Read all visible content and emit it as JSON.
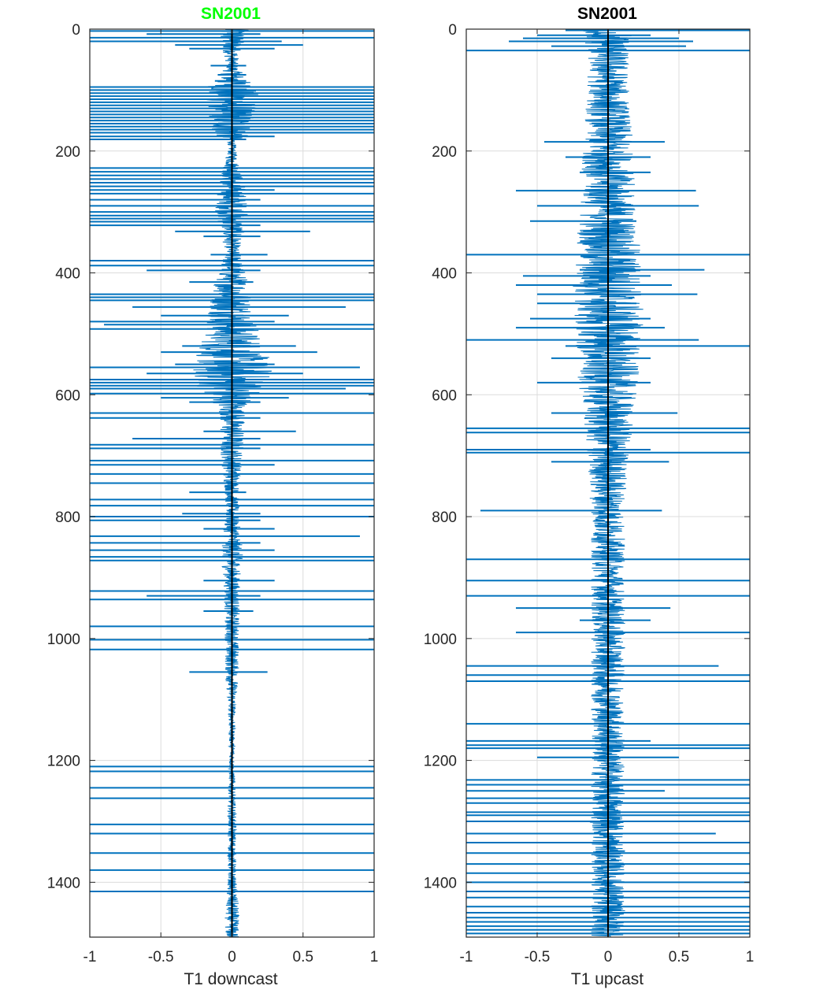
{
  "chart_data": [
    {
      "type": "line",
      "orientation": "vertical-profile",
      "title": "SN2001",
      "title_color": "#00ff00",
      "xlabel": "T1 downcast",
      "ylabel": "",
      "xlim": [
        -1,
        1
      ],
      "ylim": [
        0,
        1490
      ],
      "y_reversed": true,
      "x_ticks": [
        -1,
        -0.5,
        0,
        0.5,
        1
      ],
      "x_tick_labels": [
        "-1",
        "-0.5",
        "0",
        "0.5",
        "1"
      ],
      "y_ticks": [
        0,
        200,
        400,
        600,
        800,
        1000,
        1200,
        1400
      ],
      "y_tick_labels": [
        "0",
        "200",
        "400",
        "600",
        "800",
        "1000",
        "1200",
        "1400"
      ],
      "grid": true,
      "line_color": "#0072bd",
      "zero_line_color": "#000000",
      "envelope": [
        [
          0,
          0.12
        ],
        [
          40,
          0.06
        ],
        [
          60,
          0.04
        ],
        [
          80,
          0.1
        ],
        [
          100,
          0.2
        ],
        [
          170,
          0.15
        ],
        [
          185,
          0.03
        ],
        [
          200,
          0.03
        ],
        [
          260,
          0.1
        ],
        [
          300,
          0.12
        ],
        [
          340,
          0.08
        ],
        [
          360,
          0.05
        ],
        [
          400,
          0.1
        ],
        [
          440,
          0.15
        ],
        [
          500,
          0.2
        ],
        [
          530,
          0.25
        ],
        [
          560,
          0.3
        ],
        [
          600,
          0.22
        ],
        [
          620,
          0.1
        ],
        [
          700,
          0.08
        ],
        [
          760,
          0.05
        ],
        [
          800,
          0.05
        ],
        [
          860,
          0.08
        ],
        [
          900,
          0.06
        ],
        [
          1000,
          0.05
        ],
        [
          1060,
          0.05
        ],
        [
          1100,
          0.03
        ],
        [
          1160,
          0.02
        ],
        [
          1200,
          0.02
        ],
        [
          1300,
          0.03
        ],
        [
          1400,
          0.03
        ],
        [
          1440,
          0.05
        ],
        [
          1490,
          0.05
        ]
      ],
      "spikes": [
        {
          "y": 3,
          "xmin": -1,
          "xmax": 1
        },
        {
          "y": 8,
          "xmin": -0.6,
          "xmax": 0.2
        },
        {
          "y": 14,
          "xmin": -1,
          "xmax": 1
        },
        {
          "y": 20,
          "xmin": -1,
          "xmax": 0.35
        },
        {
          "y": 26,
          "xmin": -0.4,
          "xmax": 0.5
        },
        {
          "y": 32,
          "xmin": -0.3,
          "xmax": 0.3
        },
        {
          "y": 60,
          "xmin": -0.15,
          "xmax": 0.1
        },
        {
          "y": 75,
          "xmin": -0.1,
          "xmax": 0.1
        },
        {
          "y": 85,
          "xmin": -0.12,
          "xmax": 0.1
        },
        {
          "y": 95,
          "xmin": -1,
          "xmax": 1
        },
        {
          "y": 100,
          "xmin": -1,
          "xmax": 1
        },
        {
          "y": 105,
          "xmin": -1,
          "xmax": 1
        },
        {
          "y": 110,
          "xmin": -1,
          "xmax": 1
        },
        {
          "y": 115,
          "xmin": -1,
          "xmax": 1
        },
        {
          "y": 120,
          "xmin": -1,
          "xmax": 1
        },
        {
          "y": 125,
          "xmin": -1,
          "xmax": 1
        },
        {
          "y": 130,
          "xmin": -1,
          "xmax": 1
        },
        {
          "y": 135,
          "xmin": -1,
          "xmax": 1
        },
        {
          "y": 140,
          "xmin": -1,
          "xmax": 1
        },
        {
          "y": 145,
          "xmin": -1,
          "xmax": 1
        },
        {
          "y": 150,
          "xmin": -1,
          "xmax": 1
        },
        {
          "y": 155,
          "xmin": -1,
          "xmax": 1
        },
        {
          "y": 160,
          "xmin": -1,
          "xmax": 1
        },
        {
          "y": 165,
          "xmin": -1,
          "xmax": 1
        },
        {
          "y": 170,
          "xmin": -1,
          "xmax": 1
        },
        {
          "y": 176,
          "xmin": -1,
          "xmax": 0.3
        },
        {
          "y": 181,
          "xmin": -1,
          "xmax": 0.1
        },
        {
          "y": 228,
          "xmin": -1,
          "xmax": 1
        },
        {
          "y": 234,
          "xmin": -1,
          "xmax": 1
        },
        {
          "y": 240,
          "xmin": -1,
          "xmax": 1
        },
        {
          "y": 246,
          "xmin": -1,
          "xmax": 1
        },
        {
          "y": 252,
          "xmin": -1,
          "xmax": 1
        },
        {
          "y": 258,
          "xmin": -1,
          "xmax": 1
        },
        {
          "y": 264,
          "xmin": -1,
          "xmax": 0.3
        },
        {
          "y": 270,
          "xmin": -1,
          "xmax": 1
        },
        {
          "y": 280,
          "xmin": -1,
          "xmax": 0.2
        },
        {
          "y": 290,
          "xmin": -1,
          "xmax": 1
        },
        {
          "y": 300,
          "xmin": -1,
          "xmax": 1
        },
        {
          "y": 306,
          "xmin": -1,
          "xmax": 1
        },
        {
          "y": 311,
          "xmin": -1,
          "xmax": 1
        },
        {
          "y": 316,
          "xmin": -1,
          "xmax": 1
        },
        {
          "y": 322,
          "xmin": -1,
          "xmax": 0.2
        },
        {
          "y": 332,
          "xmin": -0.4,
          "xmax": 0.55
        },
        {
          "y": 340,
          "xmin": -0.2,
          "xmax": 0.2
        },
        {
          "y": 370,
          "xmin": -0.15,
          "xmax": 0.25
        },
        {
          "y": 380,
          "xmin": -1,
          "xmax": 1
        },
        {
          "y": 388,
          "xmin": -1,
          "xmax": 1
        },
        {
          "y": 396,
          "xmin": -0.6,
          "xmax": 0.2
        },
        {
          "y": 415,
          "xmin": -0.3,
          "xmax": 0.15
        },
        {
          "y": 435,
          "xmin": -1,
          "xmax": 1
        },
        {
          "y": 440,
          "xmin": -1,
          "xmax": 1
        },
        {
          "y": 445,
          "xmin": -1,
          "xmax": 1
        },
        {
          "y": 456,
          "xmin": -0.7,
          "xmax": 0.8
        },
        {
          "y": 470,
          "xmin": -0.5,
          "xmax": 0.4
        },
        {
          "y": 480,
          "xmin": -1,
          "xmax": 0.3
        },
        {
          "y": 485,
          "xmin": -0.9,
          "xmax": 1
        },
        {
          "y": 492,
          "xmin": -1,
          "xmax": 1
        },
        {
          "y": 520,
          "xmin": -0.35,
          "xmax": 0.45
        },
        {
          "y": 530,
          "xmin": -0.5,
          "xmax": 0.6
        },
        {
          "y": 550,
          "xmin": -0.4,
          "xmax": 0.3
        },
        {
          "y": 555,
          "xmin": -1,
          "xmax": 0.9
        },
        {
          "y": 565,
          "xmin": -0.6,
          "xmax": 0.5
        },
        {
          "y": 575,
          "xmin": -1,
          "xmax": 1
        },
        {
          "y": 580,
          "xmin": -1,
          "xmax": 1
        },
        {
          "y": 585,
          "xmin": -1,
          "xmax": 1
        },
        {
          "y": 590,
          "xmin": -1,
          "xmax": 0.8
        },
        {
          "y": 598,
          "xmin": -1,
          "xmax": 1
        },
        {
          "y": 605,
          "xmin": -0.5,
          "xmax": 0.4
        },
        {
          "y": 612,
          "xmin": -0.3,
          "xmax": 0.2
        },
        {
          "y": 630,
          "xmin": -1,
          "xmax": 1
        },
        {
          "y": 638,
          "xmin": -1,
          "xmax": 0.2
        },
        {
          "y": 660,
          "xmin": -0.2,
          "xmax": 0.45
        },
        {
          "y": 672,
          "xmin": -0.7,
          "xmax": 0.2
        },
        {
          "y": 682,
          "xmin": -1,
          "xmax": 1
        },
        {
          "y": 688,
          "xmin": -1,
          "xmax": 0.2
        },
        {
          "y": 708,
          "xmin": -1,
          "xmax": 1
        },
        {
          "y": 715,
          "xmin": -1,
          "xmax": 0.3
        },
        {
          "y": 730,
          "xmin": -1,
          "xmax": 1
        },
        {
          "y": 745,
          "xmin": -1,
          "xmax": 1
        },
        {
          "y": 760,
          "xmin": -0.3,
          "xmax": 0.1
        },
        {
          "y": 772,
          "xmin": -1,
          "xmax": 1
        },
        {
          "y": 782,
          "xmin": -1,
          "xmax": 1
        },
        {
          "y": 795,
          "xmin": -0.35,
          "xmax": 0.2
        },
        {
          "y": 800,
          "xmin": -1,
          "xmax": 1
        },
        {
          "y": 806,
          "xmin": -1,
          "xmax": 0.2
        },
        {
          "y": 820,
          "xmin": -0.2,
          "xmax": 0.3
        },
        {
          "y": 832,
          "xmin": -1,
          "xmax": 0.9
        },
        {
          "y": 843,
          "xmin": -1,
          "xmax": 0.2
        },
        {
          "y": 855,
          "xmin": -1,
          "xmax": 0.3
        },
        {
          "y": 866,
          "xmin": -1,
          "xmax": 1
        },
        {
          "y": 872,
          "xmin": -1,
          "xmax": 1
        },
        {
          "y": 905,
          "xmin": -0.2,
          "xmax": 0.3
        },
        {
          "y": 922,
          "xmin": -1,
          "xmax": 1
        },
        {
          "y": 930,
          "xmin": -0.6,
          "xmax": 0.2
        },
        {
          "y": 936,
          "xmin": -1,
          "xmax": 1
        },
        {
          "y": 955,
          "xmin": -0.2,
          "xmax": 0.15
        },
        {
          "y": 980,
          "xmin": -1,
          "xmax": 1
        },
        {
          "y": 1002,
          "xmin": -1,
          "xmax": 1
        },
        {
          "y": 1018,
          "xmin": -1,
          "xmax": 1
        },
        {
          "y": 1055,
          "xmin": -0.3,
          "xmax": 0.25
        },
        {
          "y": 1210,
          "xmin": -1,
          "xmax": 1
        },
        {
          "y": 1218,
          "xmin": -1,
          "xmax": 1
        },
        {
          "y": 1245,
          "xmin": -1,
          "xmax": 1
        },
        {
          "y": 1262,
          "xmin": -1,
          "xmax": 1
        },
        {
          "y": 1305,
          "xmin": -1,
          "xmax": 1
        },
        {
          "y": 1320,
          "xmin": -1,
          "xmax": 1
        },
        {
          "y": 1352,
          "xmin": -1,
          "xmax": 1
        },
        {
          "y": 1380,
          "xmin": -1,
          "xmax": 1
        },
        {
          "y": 1415,
          "xmin": -1,
          "xmax": 1
        }
      ]
    },
    {
      "type": "line",
      "orientation": "vertical-profile",
      "title": "SN2001",
      "title_color": "#000000",
      "xlabel": "T1 upcast",
      "ylabel": "",
      "xlim": [
        -1,
        1
      ],
      "ylim": [
        0,
        1490
      ],
      "y_reversed": true,
      "x_ticks": [
        -1,
        -0.5,
        0,
        0.5,
        1
      ],
      "x_tick_labels": [
        "-1",
        "-0.5",
        "0",
        "0.5",
        "1"
      ],
      "y_ticks": [
        0,
        200,
        400,
        600,
        800,
        1000,
        1200,
        1400
      ],
      "y_tick_labels": [
        "0",
        "200",
        "400",
        "600",
        "800",
        "1000",
        "1200",
        "1400"
      ],
      "grid": true,
      "line_color": "#0072bd",
      "zero_line_color": "#000000",
      "envelope": [
        [
          0,
          0.2
        ],
        [
          40,
          0.15
        ],
        [
          100,
          0.15
        ],
        [
          200,
          0.18
        ],
        [
          300,
          0.2
        ],
        [
          400,
          0.25
        ],
        [
          500,
          0.25
        ],
        [
          600,
          0.2
        ],
        [
          700,
          0.15
        ],
        [
          800,
          0.12
        ],
        [
          900,
          0.12
        ],
        [
          1000,
          0.12
        ],
        [
          1100,
          0.12
        ],
        [
          1200,
          0.12
        ],
        [
          1300,
          0.12
        ],
        [
          1400,
          0.12
        ],
        [
          1490,
          0.12
        ]
      ],
      "spikes": [
        {
          "y": 2,
          "xmin": -0.3,
          "xmax": 1
        },
        {
          "y": 10,
          "xmin": -0.5,
          "xmax": 0.3
        },
        {
          "y": 15,
          "xmin": -0.6,
          "xmax": 0.5
        },
        {
          "y": 20,
          "xmin": -0.7,
          "xmax": 0.6
        },
        {
          "y": 28,
          "xmin": -0.4,
          "xmax": 0.55
        },
        {
          "y": 35,
          "xmin": -1,
          "xmax": 1
        },
        {
          "y": 185,
          "xmin": -0.45,
          "xmax": 0.4
        },
        {
          "y": 210,
          "xmin": -0.3,
          "xmax": 0.3
        },
        {
          "y": 235,
          "xmin": -0.2,
          "xmax": 0.3
        },
        {
          "y": 265,
          "xmin": -0.65,
          "xmax": 0.62
        },
        {
          "y": 290,
          "xmin": -0.5,
          "xmax": 0.64
        },
        {
          "y": 315,
          "xmin": -0.55,
          "xmax": 0.2
        },
        {
          "y": 370,
          "xmin": -1,
          "xmax": 1
        },
        {
          "y": 395,
          "xmin": -0.2,
          "xmax": 0.68
        },
        {
          "y": 405,
          "xmin": -0.6,
          "xmax": 0.3
        },
        {
          "y": 420,
          "xmin": -0.65,
          "xmax": 0.45
        },
        {
          "y": 435,
          "xmin": -0.5,
          "xmax": 0.63
        },
        {
          "y": 450,
          "xmin": -0.5,
          "xmax": 0.2
        },
        {
          "y": 475,
          "xmin": -0.55,
          "xmax": 0.3
        },
        {
          "y": 490,
          "xmin": -0.65,
          "xmax": 0.4
        },
        {
          "y": 510,
          "xmin": -1,
          "xmax": 0.64
        },
        {
          "y": 520,
          "xmin": -0.3,
          "xmax": 1
        },
        {
          "y": 540,
          "xmin": -0.4,
          "xmax": 0.3
        },
        {
          "y": 580,
          "xmin": -0.5,
          "xmax": 0.3
        },
        {
          "y": 630,
          "xmin": -0.4,
          "xmax": 0.49
        },
        {
          "y": 655,
          "xmin": -1,
          "xmax": 1
        },
        {
          "y": 662,
          "xmin": -1,
          "xmax": 1
        },
        {
          "y": 690,
          "xmin": -1,
          "xmax": 0.3
        },
        {
          "y": 695,
          "xmin": -1,
          "xmax": 1
        },
        {
          "y": 710,
          "xmin": -0.4,
          "xmax": 0.43
        },
        {
          "y": 790,
          "xmin": -0.9,
          "xmax": 0.38
        },
        {
          "y": 870,
          "xmin": -1,
          "xmax": 1
        },
        {
          "y": 905,
          "xmin": -1,
          "xmax": 1
        },
        {
          "y": 930,
          "xmin": -1,
          "xmax": 1
        },
        {
          "y": 950,
          "xmin": -0.65,
          "xmax": 0.44
        },
        {
          "y": 970,
          "xmin": -0.2,
          "xmax": 0.3
        },
        {
          "y": 990,
          "xmin": -0.65,
          "xmax": 1
        },
        {
          "y": 1045,
          "xmin": -1,
          "xmax": 0.78
        },
        {
          "y": 1060,
          "xmin": -1,
          "xmax": 1
        },
        {
          "y": 1070,
          "xmin": -1,
          "xmax": 1
        },
        {
          "y": 1140,
          "xmin": -1,
          "xmax": 1
        },
        {
          "y": 1168,
          "xmin": -1,
          "xmax": 0.3
        },
        {
          "y": 1175,
          "xmin": -1,
          "xmax": 1
        },
        {
          "y": 1180,
          "xmin": -1,
          "xmax": 1
        },
        {
          "y": 1195,
          "xmin": -0.5,
          "xmax": 0.5
        },
        {
          "y": 1232,
          "xmin": -1,
          "xmax": 1
        },
        {
          "y": 1240,
          "xmin": -1,
          "xmax": 1
        },
        {
          "y": 1250,
          "xmin": -1,
          "xmax": 0.4
        },
        {
          "y": 1262,
          "xmin": -1,
          "xmax": 1
        },
        {
          "y": 1270,
          "xmin": -1,
          "xmax": 1
        },
        {
          "y": 1285,
          "xmin": -1,
          "xmax": 1
        },
        {
          "y": 1290,
          "xmin": -1,
          "xmax": 1
        },
        {
          "y": 1300,
          "xmin": -1,
          "xmax": 1
        },
        {
          "y": 1320,
          "xmin": -1,
          "xmax": 0.76
        },
        {
          "y": 1335,
          "xmin": -1,
          "xmax": 1
        },
        {
          "y": 1352,
          "xmin": -1,
          "xmax": 1
        },
        {
          "y": 1370,
          "xmin": -1,
          "xmax": 1
        },
        {
          "y": 1385,
          "xmin": -1,
          "xmax": 1
        },
        {
          "y": 1400,
          "xmin": -1,
          "xmax": 1
        },
        {
          "y": 1415,
          "xmin": -1,
          "xmax": 1
        },
        {
          "y": 1425,
          "xmin": -1,
          "xmax": 1
        },
        {
          "y": 1440,
          "xmin": -1,
          "xmax": 1
        },
        {
          "y": 1450,
          "xmin": -1,
          "xmax": 1
        },
        {
          "y": 1458,
          "xmin": -1,
          "xmax": 1
        },
        {
          "y": 1465,
          "xmin": -1,
          "xmax": 1
        },
        {
          "y": 1472,
          "xmin": -1,
          "xmax": 1
        },
        {
          "y": 1478,
          "xmin": -1,
          "xmax": 1
        },
        {
          "y": 1484,
          "xmin": -1,
          "xmax": 1
        }
      ]
    }
  ]
}
